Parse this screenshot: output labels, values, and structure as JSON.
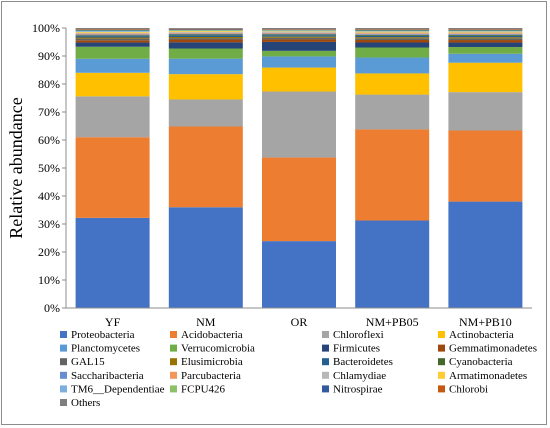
{
  "chart_data": {
    "type": "bar",
    "stacked": true,
    "ylabel": "Relative abundance",
    "xlabel": "",
    "ylim": [
      0,
      100
    ],
    "yticks": [
      "0%",
      "10%",
      "20%",
      "30%",
      "40%",
      "50%",
      "60%",
      "70%",
      "80%",
      "90%",
      "100%"
    ],
    "categories": [
      "YF",
      "NM",
      "OR",
      "NM+PB05",
      "NM+PB10"
    ],
    "legend_position": "bottom",
    "grid": false,
    "series": [
      {
        "name": "Proteobacteria",
        "color": "#4472c4",
        "values": [
          32.2,
          35.8,
          24.0,
          31.4,
          38.0
        ]
      },
      {
        "name": "Acidobacteria",
        "color": "#ed7d31",
        "values": [
          28.8,
          28.7,
          30.0,
          32.7,
          25.4
        ]
      },
      {
        "name": "Chloroflexi",
        "color": "#a5a5a5",
        "values": [
          14.6,
          9.6,
          23.7,
          12.5,
          13.7
        ]
      },
      {
        "name": "Actinobacteria",
        "color": "#ffc000",
        "values": [
          8.4,
          9.0,
          8.6,
          7.6,
          10.5
        ]
      },
      {
        "name": "Planctomycetes",
        "color": "#5b9bd5",
        "values": [
          5.0,
          5.5,
          4.0,
          5.7,
          3.2
        ]
      },
      {
        "name": "Verrucomicrobia",
        "color": "#70ad47",
        "values": [
          4.3,
          3.6,
          2.0,
          3.6,
          2.4
        ]
      },
      {
        "name": "Firmicutes",
        "color": "#264478",
        "values": [
          1.5,
          2.2,
          3.2,
          1.8,
          1.6
        ]
      },
      {
        "name": "Gemmatimonadetes",
        "color": "#9e480e",
        "values": [
          0.8,
          1.0,
          0.9,
          0.9,
          0.9
        ]
      },
      {
        "name": "GAL15",
        "color": "#636363",
        "values": [
          0.6,
          0.5,
          0.6,
          0.6,
          0.6
        ]
      },
      {
        "name": "Elusimicrobia",
        "color": "#997300",
        "values": [
          0.4,
          0.4,
          0.4,
          0.4,
          0.4
        ]
      },
      {
        "name": "Bacteroidetes",
        "color": "#255e91",
        "values": [
          0.5,
          0.6,
          0.5,
          0.5,
          0.5
        ]
      },
      {
        "name": "Cyanobacteria",
        "color": "#43682b",
        "values": [
          0.3,
          0.3,
          0.3,
          0.3,
          0.3
        ]
      },
      {
        "name": "Saccharibacteria",
        "color": "#698ed0",
        "values": [
          0.3,
          0.3,
          0.3,
          0.3,
          0.3
        ]
      },
      {
        "name": "Parcubacteria",
        "color": "#f1975a",
        "values": [
          0.3,
          0.3,
          0.3,
          0.3,
          0.3
        ]
      },
      {
        "name": "Chlamydiae",
        "color": "#b7b7b7",
        "values": [
          0.3,
          0.3,
          0.3,
          0.3,
          0.3
        ]
      },
      {
        "name": "Armatimonadetes",
        "color": "#ffcd33",
        "values": [
          0.3,
          0.3,
          0.2,
          0.3,
          0.3
        ]
      },
      {
        "name": "TM6__Dependentiae",
        "color": "#7cafdd",
        "values": [
          0.3,
          0.2,
          0.2,
          0.2,
          0.2
        ]
      },
      {
        "name": "FCPU426",
        "color": "#8cc168",
        "values": [
          0.2,
          0.2,
          0.2,
          0.2,
          0.2
        ]
      },
      {
        "name": "Nitrospirae",
        "color": "#335aa1",
        "values": [
          0.2,
          0.2,
          0.2,
          0.2,
          0.2
        ]
      },
      {
        "name": "Chlorobi",
        "color": "#c65911",
        "values": [
          0.2,
          0.2,
          0.2,
          0.2,
          0.2
        ]
      },
      {
        "name": "Others",
        "color": "#7f7f7f",
        "values": [
          0.5,
          0.3,
          0.4,
          0.5,
          0.5
        ]
      }
    ]
  }
}
